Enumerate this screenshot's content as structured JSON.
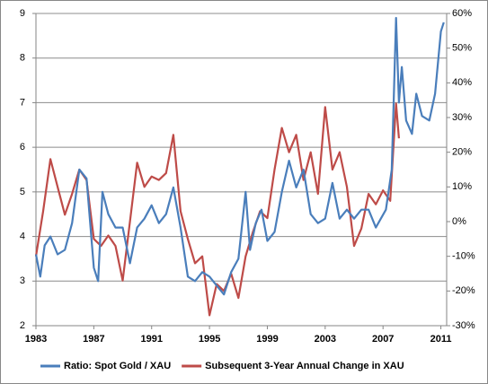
{
  "chart_data": {
    "type": "line",
    "xlim": [
      1983,
      2011.4
    ],
    "xticks": [
      1983,
      1987,
      1991,
      1995,
      1999,
      2003,
      2007,
      2011
    ],
    "ylim": [
      2,
      9
    ],
    "yticks": [
      2,
      3,
      4,
      5,
      6,
      7,
      8,
      9
    ],
    "y2lim": [
      -30,
      60
    ],
    "y2ticks": [
      {
        "value": -30,
        "label": "-30%"
      },
      {
        "value": -20,
        "label": "-20%"
      },
      {
        "value": -10,
        "label": "-10%"
      },
      {
        "value": 0,
        "label": "0%"
      },
      {
        "value": 10,
        "label": "10%"
      },
      {
        "value": 20,
        "label": "20%"
      },
      {
        "value": 30,
        "label": "30%"
      },
      {
        "value": 40,
        "label": "40%"
      },
      {
        "value": 50,
        "label": "50%"
      },
      {
        "value": 60,
        "label": "60%"
      }
    ],
    "grid": true,
    "legend": "bottom",
    "series": [
      {
        "name": "Ratio: Spot Gold / XAU",
        "color": "#4a7ebb",
        "x": [
          1983.0,
          1983.3,
          1983.6,
          1984.0,
          1984.5,
          1985.0,
          1985.5,
          1986.0,
          1986.5,
          1987.0,
          1987.3,
          1987.6,
          1988.0,
          1988.5,
          1989.0,
          1989.5,
          1990.0,
          1990.5,
          1991.0,
          1991.5,
          1992.0,
          1992.5,
          1993.0,
          1993.5,
          1994.0,
          1994.5,
          1995.0,
          1995.5,
          1996.0,
          1996.5,
          1997.0,
          1997.5,
          1997.8,
          1998.2,
          1998.6,
          1999.0,
          1999.5,
          2000.0,
          2000.5,
          2001.0,
          2001.5,
          2002.0,
          2002.5,
          2003.0,
          2003.5,
          2004.0,
          2004.5,
          2005.0,
          2005.5,
          2006.0,
          2006.5,
          2007.2,
          2007.6,
          2007.9,
          2008.1,
          2008.3,
          2008.6,
          2009.0,
          2009.3,
          2009.7,
          2010.2,
          2010.6,
          2011.0,
          2011.2
        ],
        "values": [
          3.6,
          3.1,
          3.8,
          4.0,
          3.6,
          3.7,
          4.3,
          5.5,
          5.3,
          3.3,
          3.0,
          5.0,
          4.5,
          4.2,
          4.2,
          3.4,
          4.2,
          4.4,
          4.7,
          4.3,
          4.5,
          5.1,
          4.2,
          3.1,
          3.0,
          3.2,
          3.1,
          2.9,
          2.7,
          3.2,
          3.5,
          5.0,
          3.7,
          4.3,
          4.6,
          3.9,
          4.1,
          5.0,
          5.7,
          5.1,
          5.5,
          4.5,
          4.3,
          4.4,
          5.2,
          4.4,
          4.6,
          4.4,
          4.6,
          4.6,
          4.2,
          4.6,
          5.5,
          8.9,
          7.0,
          7.8,
          6.6,
          6.3,
          7.2,
          6.7,
          6.6,
          7.2,
          8.6,
          8.8
        ]
      },
      {
        "name": "Subsequent 3-Year Annual Change in XAU",
        "color": "#be4b48",
        "axis": "y2",
        "x": [
          1983.0,
          1983.5,
          1984.0,
          1984.5,
          1985.0,
          1985.5,
          1986.0,
          1986.5,
          1987.0,
          1987.5,
          1988.0,
          1988.5,
          1989.0,
          1989.5,
          1990.0,
          1990.5,
          1991.0,
          1991.5,
          1992.0,
          1992.5,
          1993.0,
          1993.5,
          1994.0,
          1994.5,
          1995.0,
          1995.5,
          1996.0,
          1996.5,
          1997.0,
          1997.5,
          1998.0,
          1998.5,
          1999.0,
          1999.5,
          2000.0,
          2000.5,
          2001.0,
          2001.5,
          2002.0,
          2002.5,
          2003.0,
          2003.5,
          2004.0,
          2004.5,
          2005.0,
          2005.5,
          2006.0,
          2006.5,
          2007.0,
          2007.5,
          2007.9,
          2008.1
        ],
        "values": [
          -10,
          3,
          18,
          10,
          2,
          8,
          15,
          12,
          -5,
          -7,
          -4,
          -7,
          -17,
          0,
          17,
          10,
          13,
          12,
          14,
          25,
          3,
          -5,
          -12,
          -10,
          -27,
          -18,
          -20,
          -15,
          -22,
          -10,
          -3,
          3,
          1,
          15,
          27,
          20,
          25,
          12,
          20,
          8,
          33,
          15,
          20,
          10,
          -7,
          -2,
          8,
          5,
          9,
          6,
          34,
          24
        ]
      }
    ]
  }
}
